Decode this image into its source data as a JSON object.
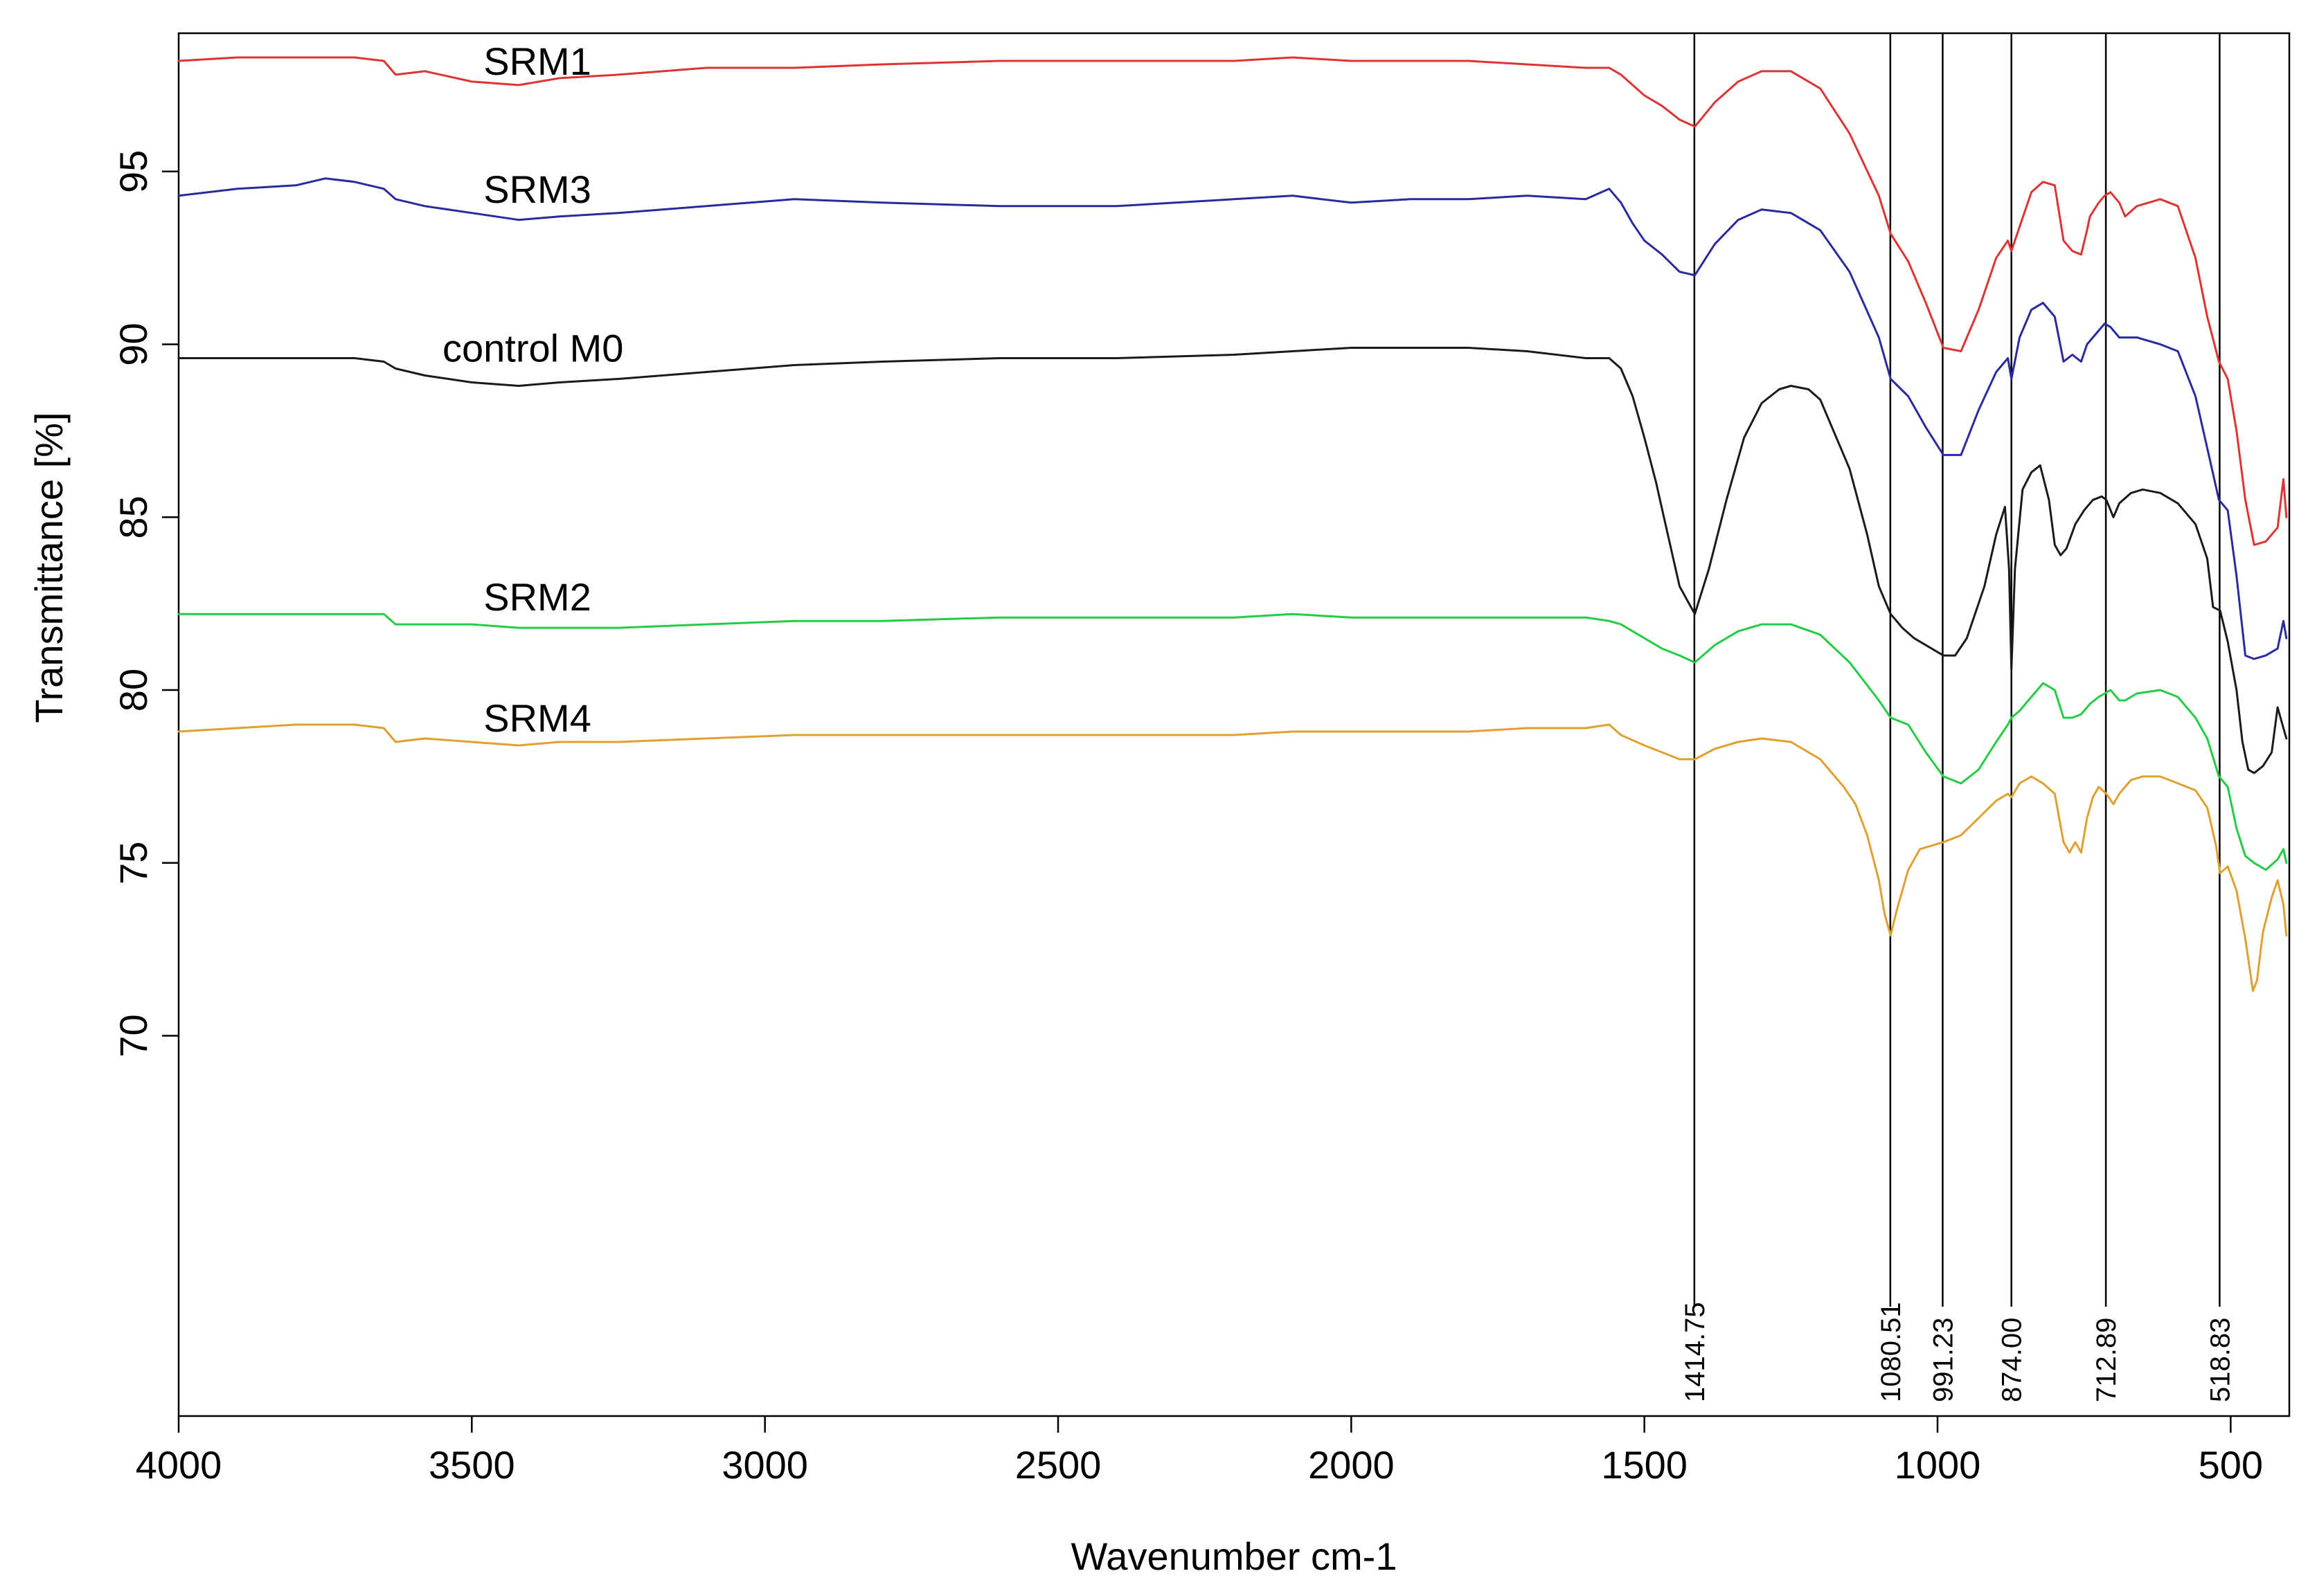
{
  "chart_data": {
    "type": "line",
    "title": "",
    "xlabel": "Wavenumber cm-1",
    "ylabel": "Transmittance [%]",
    "xlim": [
      4000,
      400
    ],
    "ylim": [
      59,
      99
    ],
    "x_ticks": [
      4000,
      3500,
      3000,
      2500,
      2000,
      1500,
      1000,
      500
    ],
    "y_ticks": [
      70,
      75,
      80,
      85,
      90,
      95
    ],
    "peak_markers": [
      {
        "x": 1414.75,
        "label": "1414.75"
      },
      {
        "x": 1080.51,
        "label": "1080.51"
      },
      {
        "x": 991.23,
        "label": "991.23"
      },
      {
        "x": 874.0,
        "label": "874.00"
      },
      {
        "x": 712.89,
        "label": "712.89"
      },
      {
        "x": 518.83,
        "label": "518.83"
      }
    ],
    "series": [
      {
        "name": "SRM1",
        "color": "#dd3333",
        "label": {
          "text": "SRM1",
          "x": 3480,
          "y": 97.8
        },
        "x": [
          4000,
          3900,
          3800,
          3700,
          3650,
          3630,
          3580,
          3500,
          3420,
          3350,
          3250,
          3100,
          2950,
          2800,
          2600,
          2400,
          2200,
          2100,
          2000,
          1900,
          1800,
          1700,
          1600,
          1560,
          1540,
          1500,
          1470,
          1440,
          1414,
          1380,
          1340,
          1300,
          1250,
          1200,
          1150,
          1100,
          1080,
          1050,
          1020,
          990,
          960,
          930,
          900,
          880,
          874,
          860,
          840,
          820,
          800,
          785,
          770,
          755,
          745,
          740,
          725,
          715,
          705,
          690,
          680,
          660,
          620,
          590,
          560,
          540,
          520,
          505,
          490,
          475,
          460,
          440,
          420,
          410,
          405
        ],
        "y": [
          98.2,
          98.3,
          98.3,
          98.3,
          98.2,
          97.8,
          97.9,
          97.6,
          97.5,
          97.7,
          97.8,
          98.0,
          98.0,
          98.1,
          98.2,
          98.2,
          98.2,
          98.3,
          98.2,
          98.2,
          98.2,
          98.1,
          98.0,
          98.0,
          97.8,
          97.2,
          96.9,
          96.5,
          96.3,
          97.0,
          97.6,
          97.9,
          97.9,
          97.4,
          96.1,
          94.3,
          93.2,
          92.4,
          91.2,
          89.9,
          89.8,
          91.0,
          92.5,
          93.0,
          92.7,
          93.4,
          94.4,
          94.7,
          94.6,
          93.0,
          92.7,
          92.6,
          93.3,
          93.7,
          94.1,
          94.3,
          94.4,
          94.1,
          93.7,
          94.0,
          94.2,
          94.0,
          92.5,
          90.8,
          89.5,
          89.0,
          87.5,
          85.5,
          84.2,
          84.3,
          84.7,
          86.1,
          85.0
        ]
      },
      {
        "name": "SRM3",
        "color": "#2a2aa0",
        "label": {
          "text": "SRM3",
          "x": 3480,
          "y": 94.1
        },
        "x": [
          4000,
          3900,
          3800,
          3750,
          3700,
          3650,
          3630,
          3580,
          3500,
          3420,
          3350,
          3250,
          3100,
          2950,
          2800,
          2600,
          2400,
          2200,
          2100,
          2000,
          1900,
          1800,
          1700,
          1600,
          1560,
          1540,
          1520,
          1500,
          1470,
          1440,
          1414,
          1380,
          1340,
          1300,
          1250,
          1200,
          1150,
          1100,
          1080,
          1050,
          1020,
          990,
          960,
          930,
          900,
          880,
          874,
          860,
          840,
          820,
          800,
          785,
          770,
          755,
          745,
          740,
          725,
          715,
          705,
          690,
          680,
          660,
          620,
          590,
          560,
          540,
          520,
          505,
          490,
          475,
          460,
          440,
          420,
          410,
          405
        ],
        "y": [
          94.3,
          94.5,
          94.6,
          94.8,
          94.7,
          94.5,
          94.2,
          94.0,
          93.8,
          93.6,
          93.7,
          93.8,
          94.0,
          94.2,
          94.1,
          94.0,
          94.0,
          94.2,
          94.3,
          94.1,
          94.2,
          94.2,
          94.3,
          94.2,
          94.5,
          94.1,
          93.5,
          93.0,
          92.6,
          92.1,
          92.0,
          92.9,
          93.6,
          93.9,
          93.8,
          93.3,
          92.1,
          90.2,
          89.0,
          88.5,
          87.6,
          86.8,
          86.8,
          88.1,
          89.2,
          89.6,
          89.0,
          90.2,
          91.0,
          91.2,
          90.8,
          89.5,
          89.7,
          89.5,
          90.0,
          90.1,
          90.4,
          90.6,
          90.5,
          90.2,
          90.2,
          90.2,
          90.0,
          89.8,
          88.5,
          87.0,
          85.5,
          85.2,
          83.3,
          81.0,
          80.9,
          81.0,
          81.2,
          82.0,
          81.5
        ]
      },
      {
        "name": "control M0",
        "color": "#1a1a1a",
        "label": {
          "text": "control M0",
          "x": 3550,
          "y": 89.5
        },
        "x": [
          4000,
          3900,
          3800,
          3700,
          3650,
          3630,
          3580,
          3500,
          3420,
          3350,
          3250,
          3100,
          2950,
          2800,
          2600,
          2400,
          2200,
          2100,
          2000,
          1900,
          1800,
          1700,
          1600,
          1560,
          1540,
          1520,
          1500,
          1480,
          1460,
          1440,
          1414,
          1390,
          1360,
          1330,
          1300,
          1270,
          1250,
          1220,
          1200,
          1180,
          1150,
          1120,
          1100,
          1080,
          1060,
          1040,
          1010,
          990,
          970,
          950,
          920,
          900,
          885,
          878,
          874,
          868,
          855,
          840,
          825,
          810,
          800,
          790,
          780,
          765,
          750,
          735,
          720,
          712,
          700,
          690,
          670,
          650,
          620,
          590,
          560,
          540,
          530,
          518,
          505,
          490,
          480,
          470,
          460,
          445,
          430,
          420,
          410,
          405
        ],
        "y": [
          89.6,
          89.6,
          89.6,
          89.6,
          89.5,
          89.3,
          89.1,
          88.9,
          88.8,
          88.9,
          89.0,
          89.2,
          89.4,
          89.5,
          89.6,
          89.6,
          89.7,
          89.8,
          89.9,
          89.9,
          89.9,
          89.8,
          89.6,
          89.6,
          89.3,
          88.5,
          87.3,
          86.0,
          84.5,
          83.0,
          82.2,
          83.5,
          85.5,
          87.3,
          88.3,
          88.7,
          88.8,
          88.7,
          88.4,
          87.6,
          86.4,
          84.5,
          83.0,
          82.2,
          81.8,
          81.5,
          81.2,
          81.0,
          81.0,
          81.5,
          83.0,
          84.5,
          85.3,
          83.5,
          80.6,
          83.5,
          85.8,
          86.3,
          86.5,
          85.5,
          84.2,
          83.9,
          84.1,
          84.8,
          85.2,
          85.5,
          85.6,
          85.5,
          85.0,
          85.4,
          85.7,
          85.8,
          85.7,
          85.4,
          84.8,
          83.8,
          82.4,
          82.3,
          81.4,
          80.0,
          78.5,
          77.7,
          77.6,
          77.8,
          78.2,
          79.5,
          78.9,
          78.6
        ]
      },
      {
        "name": "SRM2",
        "color": "#22cc44",
        "label": {
          "text": "SRM2",
          "x": 3480,
          "y": 82.3
        },
        "x": [
          4000,
          3900,
          3800,
          3700,
          3650,
          3630,
          3580,
          3500,
          3420,
          3350,
          3250,
          3100,
          2950,
          2800,
          2600,
          2400,
          2200,
          2100,
          2000,
          1900,
          1800,
          1700,
          1600,
          1560,
          1540,
          1500,
          1470,
          1440,
          1414,
          1380,
          1340,
          1300,
          1250,
          1200,
          1150,
          1100,
          1080,
          1050,
          1020,
          990,
          960,
          930,
          900,
          880,
          874,
          860,
          840,
          820,
          800,
          785,
          770,
          755,
          745,
          740,
          725,
          715,
          705,
          690,
          680,
          660,
          620,
          590,
          560,
          540,
          520,
          505,
          490,
          475,
          460,
          440,
          420,
          410,
          405
        ],
        "y": [
          82.2,
          82.2,
          82.2,
          82.2,
          82.2,
          81.9,
          81.9,
          81.9,
          81.8,
          81.8,
          81.8,
          81.9,
          82.0,
          82.0,
          82.1,
          82.1,
          82.1,
          82.2,
          82.1,
          82.1,
          82.1,
          82.1,
          82.1,
          82.0,
          81.9,
          81.5,
          81.2,
          81.0,
          80.8,
          81.3,
          81.7,
          81.9,
          81.9,
          81.6,
          80.8,
          79.7,
          79.2,
          79.0,
          78.2,
          77.5,
          77.3,
          77.7,
          78.5,
          79.0,
          79.2,
          79.4,
          79.8,
          80.2,
          80.0,
          79.2,
          79.2,
          79.3,
          79.5,
          79.6,
          79.8,
          79.9,
          80.0,
          79.7,
          79.7,
          79.9,
          80.0,
          79.8,
          79.2,
          78.6,
          77.5,
          77.2,
          76.0,
          75.2,
          75.0,
          74.8,
          75.1,
          75.4,
          75.0
        ]
      },
      {
        "name": "SRM4",
        "color": "#e0a030",
        "label": {
          "text": "SRM4",
          "x": 3480,
          "y": 78.8
        },
        "x": [
          4000,
          3900,
          3800,
          3700,
          3650,
          3630,
          3580,
          3500,
          3420,
          3350,
          3250,
          3100,
          2950,
          2800,
          2600,
          2400,
          2200,
          2100,
          2000,
          1900,
          1800,
          1700,
          1600,
          1560,
          1540,
          1500,
          1470,
          1440,
          1414,
          1380,
          1340,
          1300,
          1250,
          1200,
          1160,
          1140,
          1120,
          1100,
          1090,
          1080,
          1070,
          1050,
          1030,
          1010,
          990,
          960,
          930,
          900,
          880,
          874,
          860,
          840,
          820,
          800,
          785,
          775,
          765,
          755,
          745,
          735,
          725,
          712,
          700,
          690,
          670,
          650,
          620,
          590,
          560,
          540,
          525,
          518,
          505,
          490,
          475,
          462,
          455,
          445,
          430,
          420,
          410,
          405
        ],
        "y": [
          78.8,
          78.9,
          79.0,
          79.0,
          78.9,
          78.5,
          78.6,
          78.5,
          78.4,
          78.5,
          78.5,
          78.6,
          78.7,
          78.7,
          78.7,
          78.7,
          78.7,
          78.8,
          78.8,
          78.8,
          78.8,
          78.9,
          78.9,
          79.0,
          78.7,
          78.4,
          78.2,
          78.0,
          78.0,
          78.3,
          78.5,
          78.6,
          78.5,
          78.0,
          77.2,
          76.7,
          75.8,
          74.5,
          73.5,
          72.9,
          73.6,
          74.8,
          75.4,
          75.5,
          75.6,
          75.8,
          76.3,
          76.8,
          77.0,
          76.9,
          77.3,
          77.5,
          77.3,
          77.0,
          75.6,
          75.3,
          75.6,
          75.3,
          76.3,
          76.9,
          77.2,
          77.0,
          76.7,
          77.0,
          77.4,
          77.5,
          77.5,
          77.3,
          77.1,
          76.6,
          75.5,
          74.7,
          74.9,
          74.2,
          72.8,
          71.3,
          71.6,
          73.0,
          74.0,
          74.5,
          73.8,
          72.9
        ]
      }
    ]
  }
}
